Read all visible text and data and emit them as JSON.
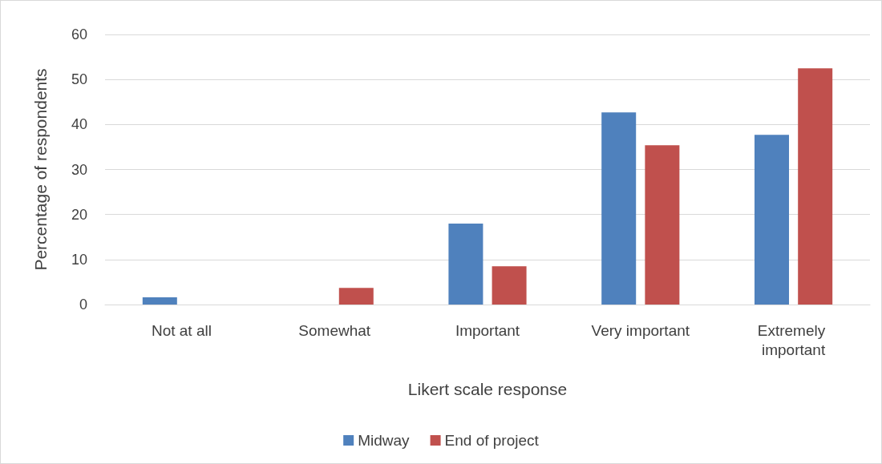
{
  "chart_data": {
    "type": "bar",
    "xlabel": "Likert scale response",
    "ylabel": "Percentage of respondents",
    "categories": [
      "Not at all",
      "Somewhat",
      "Important",
      "Very important",
      "Extremely important"
    ],
    "series": [
      {
        "name": "Midway",
        "color": "#4f81bd",
        "values": [
          1.6,
          0,
          18.0,
          42.7,
          37.7
        ]
      },
      {
        "name": "End of project",
        "color": "#c0504d",
        "values": [
          0,
          3.7,
          8.5,
          35.4,
          52.5
        ]
      }
    ],
    "ylim": [
      0,
      60
    ],
    "yticks": [
      0,
      10,
      20,
      30,
      40,
      50,
      60
    ],
    "grid": "y",
    "legend": "bottom"
  }
}
